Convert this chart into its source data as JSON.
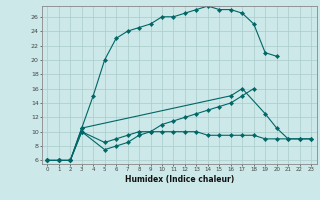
{
  "xlabel": "Humidex (Indice chaleur)",
  "background_color": "#cce8e8",
  "grid_color": "#aacccc",
  "line_color": "#006666",
  "xlim": [
    -0.5,
    23.5
  ],
  "ylim": [
    5.5,
    27.5
  ],
  "yticks": [
    6,
    8,
    10,
    12,
    14,
    16,
    18,
    20,
    22,
    24,
    26
  ],
  "xticks": [
    0,
    1,
    2,
    3,
    4,
    5,
    6,
    7,
    8,
    9,
    10,
    11,
    12,
    13,
    14,
    15,
    16,
    17,
    18,
    19,
    20,
    21,
    22,
    23
  ],
  "s1_x": [
    0,
    1,
    2,
    3,
    4,
    5,
    6,
    7,
    8,
    9,
    10,
    11,
    12,
    13,
    14,
    15,
    16,
    17,
    18,
    19,
    20
  ],
  "s1_y": [
    6,
    6,
    6,
    10.5,
    15,
    20,
    23,
    24,
    24.5,
    25,
    26,
    26,
    26.5,
    27,
    27.5,
    27,
    27,
    26.5,
    25,
    21,
    20.5
  ],
  "s2_x": [
    0,
    1,
    2,
    3,
    16,
    17,
    19,
    20,
    21,
    22,
    23
  ],
  "s2_y": [
    6,
    6,
    6,
    10.5,
    15,
    16,
    12.5,
    10.5,
    9,
    9,
    9
  ],
  "s3_x": [
    0,
    1,
    2,
    3,
    5,
    6,
    7,
    8,
    9,
    10,
    11,
    12,
    13,
    14,
    15,
    16,
    17,
    18,
    19,
    20,
    21,
    22,
    23
  ],
  "s3_y": [
    6,
    6,
    6,
    10,
    8.5,
    9,
    9.5,
    10,
    10,
    10,
    10,
    10,
    10,
    9.5,
    9.5,
    9.5,
    9.5,
    9.5,
    9,
    9,
    9,
    9,
    9
  ],
  "s4_x": [
    0,
    1,
    2,
    3,
    5,
    6,
    7,
    8,
    9,
    10,
    11,
    12,
    13,
    14,
    15,
    16,
    17,
    18
  ],
  "s4_y": [
    6,
    6,
    6,
    10,
    7.5,
    8,
    8.5,
    9.5,
    10,
    11,
    11.5,
    12,
    12.5,
    13,
    13.5,
    14,
    15,
    16
  ]
}
